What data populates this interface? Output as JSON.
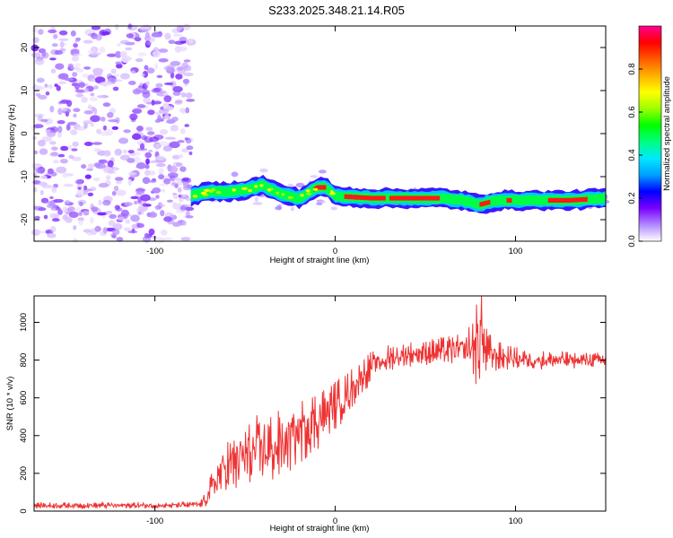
{
  "title": "S233.2025.348.21.14.R05",
  "chart_data": [
    {
      "type": "heatmap",
      "xlabel": "Height of straight line (km)",
      "ylabel": "Frequency (Hz)",
      "xlim": [
        -167,
        150
      ],
      "ylim": [
        -25,
        25
      ],
      "xticks": [
        {
          "v": -100,
          "label": "-100"
        },
        {
          "v": 0,
          "label": "0"
        },
        {
          "v": 100,
          "label": "100"
        }
      ],
      "yticks": [
        {
          "v": -20,
          "label": "-20"
        },
        {
          "v": -10,
          "label": "-10"
        },
        {
          "v": 0,
          "label": "0"
        },
        {
          "v": 10,
          "label": "10"
        },
        {
          "v": 20,
          "label": "20"
        }
      ],
      "noise_region": {
        "x": [
          -167,
          -80
        ],
        "y": [
          -25,
          25
        ],
        "amplitude": 0.15
      },
      "ridge": [
        {
          "x": -80,
          "f": -14.5
        },
        {
          "x": -70,
          "f": -13.5
        },
        {
          "x": -60,
          "f": -13.5
        },
        {
          "x": -50,
          "f": -13.0
        },
        {
          "x": -40,
          "f": -12.0
        },
        {
          "x": -30,
          "f": -14.0
        },
        {
          "x": -20,
          "f": -15.0
        },
        {
          "x": -10,
          "f": -12.5
        },
        {
          "x": -5,
          "f": -12.5
        },
        {
          "x": 0,
          "f": -14.5
        },
        {
          "x": 20,
          "f": -15.0
        },
        {
          "x": 60,
          "f": -15.0
        },
        {
          "x": 70,
          "f": -15.5
        },
        {
          "x": 80,
          "f": -16.5
        },
        {
          "x": 90,
          "f": -15.5
        },
        {
          "x": 110,
          "f": -15.5
        },
        {
          "x": 130,
          "f": -15.5
        },
        {
          "x": 150,
          "f": -15.0
        }
      ],
      "colorbar": {
        "label": "Normalized spectral amplitude",
        "range": [
          0,
          1
        ],
        "ticks": [
          {
            "v": 0.0,
            "label": "0.0"
          },
          {
            "v": 0.2,
            "label": "0.2"
          },
          {
            "v": 0.4,
            "label": "0.4"
          },
          {
            "v": 0.6,
            "label": "0.6"
          },
          {
            "v": 0.8,
            "label": "0.8"
          }
        ],
        "colors": [
          "#ffffff",
          "#b088ff",
          "#7a00ff",
          "#0000ff",
          "#00a0ff",
          "#00e8ff",
          "#00ff80",
          "#00ff00",
          "#9cff00",
          "#ffff00",
          "#ffb000",
          "#ff5a00",
          "#ff0000",
          "#ff0090"
        ]
      }
    },
    {
      "type": "line",
      "xlabel": "Height of straight line (km)",
      "ylabel": "SNR (10 * v/v)",
      "xlim": [
        -167,
        150
      ],
      "ylim": [
        0,
        1140
      ],
      "xticks": [
        {
          "v": -100,
          "label": "-100"
        },
        {
          "v": 0,
          "label": "0"
        },
        {
          "v": 100,
          "label": "100"
        }
      ],
      "yticks": [
        {
          "v": 0,
          "label": "0"
        },
        {
          "v": 200,
          "label": "200"
        },
        {
          "v": 400,
          "label": "400"
        },
        {
          "v": 600,
          "label": "600"
        },
        {
          "v": 800,
          "label": "800"
        },
        {
          "v": 1000,
          "label": "1000"
        }
      ],
      "color": "#ee3333",
      "x": [
        -167,
        -150,
        -130,
        -110,
        -90,
        -75,
        -72,
        -70,
        -65,
        -60,
        -55,
        -50,
        -45,
        -40,
        -35,
        -30,
        -25,
        -20,
        -15,
        -10,
        -5,
        0,
        5,
        10,
        15,
        20,
        25,
        30,
        40,
        50,
        60,
        70,
        75,
        78,
        80,
        82,
        85,
        90,
        100,
        110,
        120,
        130,
        140,
        150
      ],
      "y": [
        30,
        30,
        30,
        30,
        30,
        35,
        60,
        100,
        180,
        240,
        260,
        290,
        300,
        330,
        330,
        350,
        380,
        420,
        460,
        480,
        520,
        560,
        600,
        660,
        720,
        760,
        790,
        810,
        830,
        840,
        850,
        850,
        860,
        880,
        900,
        860,
        840,
        820,
        810,
        800,
        800,
        800,
        800,
        800
      ],
      "amplitude": [
        12,
        12,
        12,
        12,
        12,
        12,
        30,
        50,
        80,
        110,
        130,
        150,
        150,
        150,
        140,
        140,
        130,
        130,
        130,
        120,
        110,
        100,
        90,
        80,
        70,
        65,
        60,
        55,
        50,
        50,
        55,
        65,
        100,
        160,
        180,
        120,
        80,
        60,
        45,
        40,
        35,
        35,
        30,
        30
      ]
    }
  ]
}
